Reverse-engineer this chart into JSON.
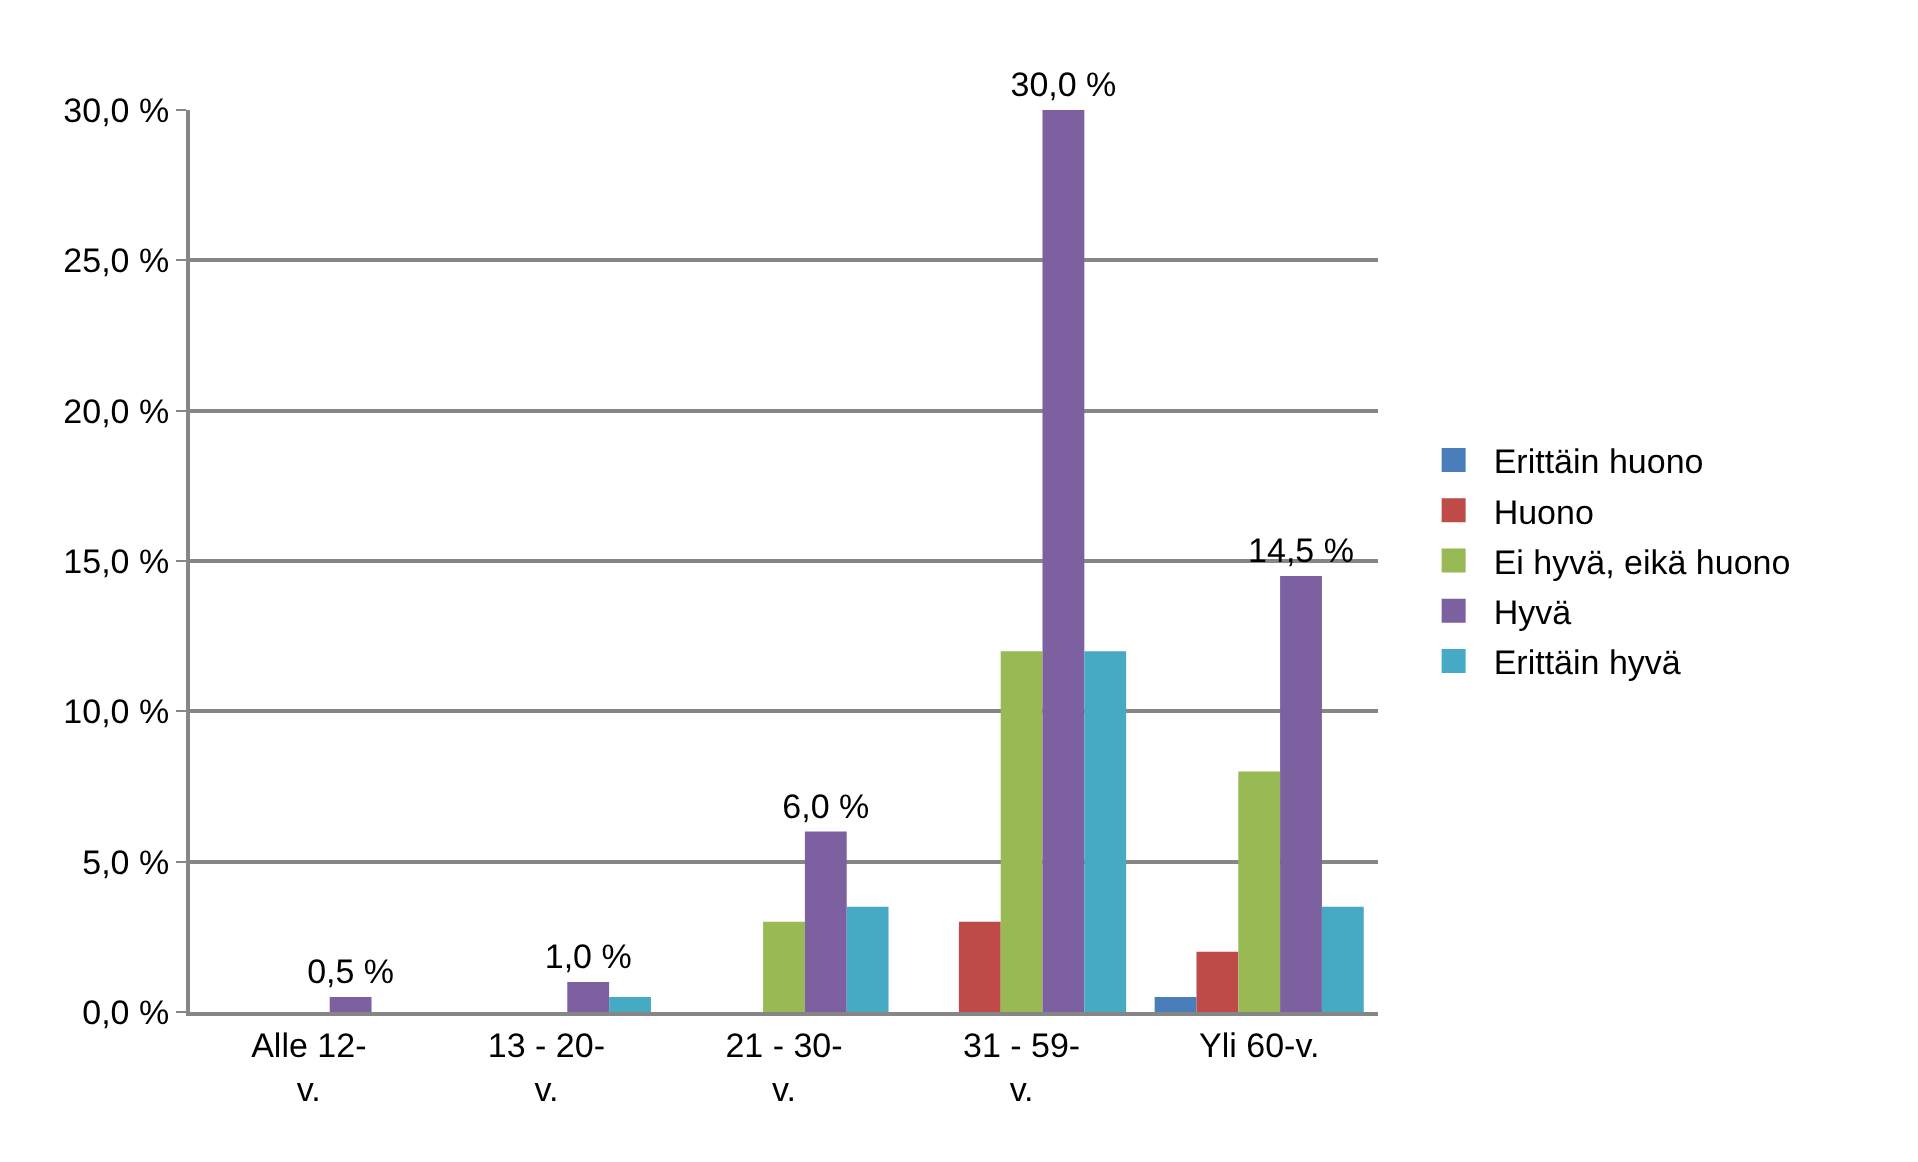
{
  "chart_data": {
    "type": "bar",
    "categories": [
      "Alle 12-v.",
      "13 - 20-v.",
      "21 - 30-v.",
      "31 - 59-v.",
      "Yli 60-v."
    ],
    "series": [
      {
        "name": "Erittäin huono",
        "color": "#4a7ebb",
        "values": [
          0,
          0,
          0,
          0,
          0.5
        ]
      },
      {
        "name": "Huono",
        "color": "#be4b48",
        "values": [
          0,
          0,
          0,
          3,
          2
        ]
      },
      {
        "name": "Ei hyvä, eikä huono",
        "color": "#98b954",
        "values": [
          0,
          0,
          3,
          12,
          8
        ]
      },
      {
        "name": "Hyvä",
        "color": "#7d60a0",
        "values": [
          0.5,
          1,
          6,
          30,
          14.5
        ],
        "value_labels": [
          "0,5 %",
          "1,0 %",
          "6,0 %",
          "30,0 %",
          "14,5 %"
        ]
      },
      {
        "name": "Erittäin hyvä",
        "color": "#46aac5",
        "values": [
          0,
          0.5,
          3.5,
          12,
          3.5
        ]
      }
    ],
    "ylim": [
      0,
      30
    ],
    "yticks": [
      {
        "value": 0,
        "label": "0,0 %"
      },
      {
        "value": 5,
        "label": "5,0 %"
      },
      {
        "value": 10,
        "label": "10,0 %"
      },
      {
        "value": 15,
        "label": "15,0 %"
      },
      {
        "value": 20,
        "label": "20,0 %"
      },
      {
        "value": 25,
        "label": "25,0 %"
      },
      {
        "value": 30,
        "label": "30,0 %"
      }
    ],
    "grid": "y",
    "legend": "right"
  }
}
